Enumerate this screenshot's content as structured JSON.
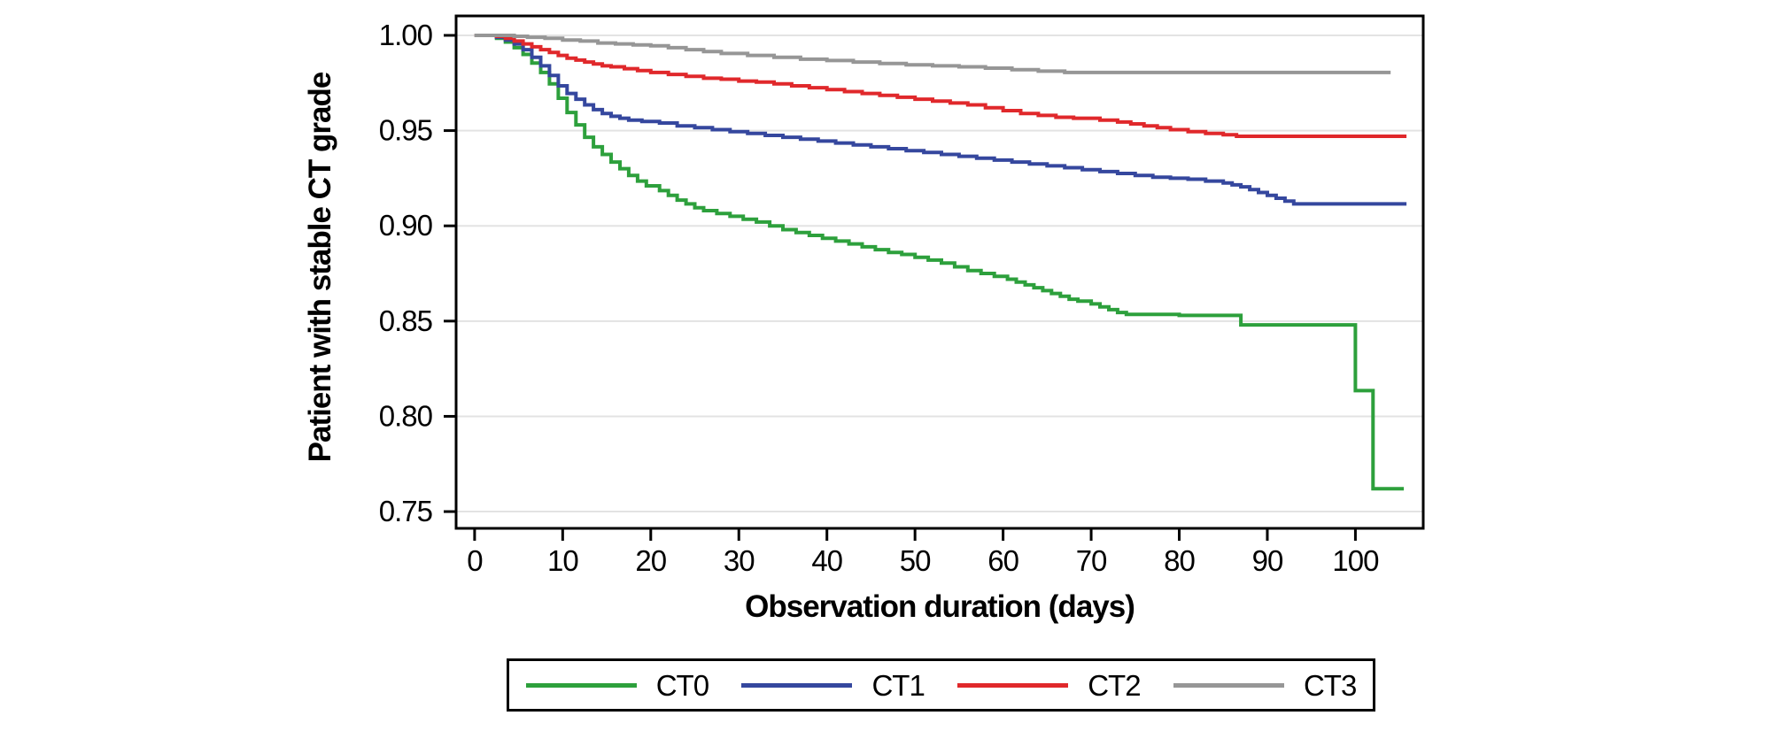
{
  "figure": {
    "background_color": "#ffffff",
    "axis_color": "#000000",
    "gridline_color": "#e3e3e3"
  },
  "chart_data": {
    "type": "line",
    "subtype": "kaplan-meier-step",
    "title": "",
    "xlabel": "Observation duration (days)",
    "ylabel": "Patient with stable CT grade",
    "xlim": [
      -2.1,
      107.7
    ],
    "ylim": [
      0.7412,
      1.0102
    ],
    "x_ticks": [
      0,
      10,
      20,
      30,
      40,
      50,
      60,
      70,
      80,
      90,
      100
    ],
    "y_ticks": [
      1.0,
      0.95,
      0.9,
      0.85,
      0.8,
      0.75
    ],
    "grid": "horizontal-only",
    "legend_position": "bottom-outside-boxed",
    "series": [
      {
        "name": "CT0",
        "color": "#2da03c",
        "points": [
          [
            0,
            1
          ],
          [
            2.5,
            0.9985
          ],
          [
            3.5,
            0.9965
          ],
          [
            4.5,
            0.9935
          ],
          [
            5.5,
            0.99
          ],
          [
            6.5,
            0.9855
          ],
          [
            7.5,
            0.9805
          ],
          [
            8.5,
            0.9745
          ],
          [
            9.5,
            0.967
          ],
          [
            10.5,
            0.9595
          ],
          [
            11.5,
            0.953
          ],
          [
            12.5,
            0.9465
          ],
          [
            13.5,
            0.9415
          ],
          [
            14.5,
            0.9375
          ],
          [
            15.5,
            0.9335
          ],
          [
            16.5,
            0.93
          ],
          [
            17.5,
            0.9265
          ],
          [
            18.5,
            0.9235
          ],
          [
            19.5,
            0.921
          ],
          [
            21,
            0.9185
          ],
          [
            22,
            0.916
          ],
          [
            23,
            0.9135
          ],
          [
            24,
            0.9115
          ],
          [
            25,
            0.9095
          ],
          [
            26,
            0.908
          ],
          [
            27.5,
            0.9065
          ],
          [
            29,
            0.905
          ],
          [
            30.5,
            0.9035
          ],
          [
            32,
            0.902
          ],
          [
            33.5,
            0.9
          ],
          [
            35,
            0.898
          ],
          [
            36.5,
            0.8965
          ],
          [
            38,
            0.895
          ],
          [
            39.5,
            0.8935
          ],
          [
            41,
            0.892
          ],
          [
            42.5,
            0.8905
          ],
          [
            44,
            0.889
          ],
          [
            45.5,
            0.8875
          ],
          [
            47,
            0.886
          ],
          [
            48.5,
            0.885
          ],
          [
            50,
            0.8835
          ],
          [
            51.5,
            0.882
          ],
          [
            53,
            0.8805
          ],
          [
            54.5,
            0.8785
          ],
          [
            56,
            0.8765
          ],
          [
            57.5,
            0.875
          ],
          [
            59,
            0.8735
          ],
          [
            60.5,
            0.872
          ],
          [
            61.5,
            0.8705
          ],
          [
            62.5,
            0.869
          ],
          [
            63.5,
            0.8675
          ],
          [
            64.5,
            0.866
          ],
          [
            65.5,
            0.8645
          ],
          [
            66.5,
            0.863
          ],
          [
            67.5,
            0.8615
          ],
          [
            68.5,
            0.8605
          ],
          [
            70,
            0.859
          ],
          [
            71,
            0.8575
          ],
          [
            72,
            0.856
          ],
          [
            73,
            0.8545
          ],
          [
            74,
            0.8535
          ],
          [
            80,
            0.853
          ],
          [
            87,
            0.848
          ],
          [
            100,
            0.8135
          ],
          [
            102,
            0.762
          ],
          [
            105.5,
            0.762
          ]
        ]
      },
      {
        "name": "CT1",
        "color": "#35479e",
        "points": [
          [
            0,
            1
          ],
          [
            2.5,
            0.999
          ],
          [
            3.5,
            0.9975
          ],
          [
            4.5,
            0.9955
          ],
          [
            5.5,
            0.9925
          ],
          [
            6.5,
            0.9885
          ],
          [
            7.5,
            0.984
          ],
          [
            8.5,
            0.979
          ],
          [
            9.5,
            0.9735
          ],
          [
            10.5,
            0.9695
          ],
          [
            11.5,
            0.9665
          ],
          [
            12.5,
            0.9635
          ],
          [
            13.5,
            0.961
          ],
          [
            14.5,
            0.959
          ],
          [
            15.5,
            0.9575
          ],
          [
            16.5,
            0.9565
          ],
          [
            17.5,
            0.9555
          ],
          [
            19,
            0.9548
          ],
          [
            21,
            0.954
          ],
          [
            23,
            0.9525
          ],
          [
            25,
            0.9515
          ],
          [
            27,
            0.9505
          ],
          [
            29,
            0.9495
          ],
          [
            31,
            0.9485
          ],
          [
            33,
            0.9475
          ],
          [
            35,
            0.9465
          ],
          [
            37,
            0.9455
          ],
          [
            39,
            0.9445
          ],
          [
            41,
            0.9435
          ],
          [
            43,
            0.9425
          ],
          [
            45,
            0.9415
          ],
          [
            47,
            0.9405
          ],
          [
            49,
            0.9395
          ],
          [
            51,
            0.9385
          ],
          [
            53,
            0.9375
          ],
          [
            55,
            0.9365
          ],
          [
            57,
            0.9355
          ],
          [
            59,
            0.9345
          ],
          [
            61,
            0.9335
          ],
          [
            63,
            0.9325
          ],
          [
            65,
            0.9315
          ],
          [
            67,
            0.9305
          ],
          [
            69,
            0.9295
          ],
          [
            71,
            0.9285
          ],
          [
            73,
            0.9275
          ],
          [
            75,
            0.9265
          ],
          [
            77,
            0.9255
          ],
          [
            79,
            0.925
          ],
          [
            81,
            0.9245
          ],
          [
            83,
            0.9235
          ],
          [
            85,
            0.9225
          ],
          [
            86,
            0.9215
          ],
          [
            87,
            0.9205
          ],
          [
            88,
            0.919
          ],
          [
            89,
            0.9175
          ],
          [
            90,
            0.916
          ],
          [
            91,
            0.9145
          ],
          [
            92,
            0.913
          ],
          [
            93,
            0.9115
          ],
          [
            105.8,
            0.9115
          ]
        ]
      },
      {
        "name": "CT2",
        "color": "#e0282b",
        "points": [
          [
            0,
            1
          ],
          [
            2.5,
            0.9995
          ],
          [
            3.5,
            0.9985
          ],
          [
            4.5,
            0.997
          ],
          [
            5.5,
            0.9955
          ],
          [
            6.5,
            0.994
          ],
          [
            7.5,
            0.9925
          ],
          [
            8.5,
            0.991
          ],
          [
            9.5,
            0.9895
          ],
          [
            10.5,
            0.988
          ],
          [
            11.5,
            0.987
          ],
          [
            12.5,
            0.986
          ],
          [
            13.5,
            0.985
          ],
          [
            14.5,
            0.984
          ],
          [
            15.5,
            0.9835
          ],
          [
            17,
            0.9825
          ],
          [
            18.5,
            0.9815
          ],
          [
            20,
            0.9805
          ],
          [
            22,
            0.9795
          ],
          [
            24,
            0.9785
          ],
          [
            26,
            0.9775
          ],
          [
            28,
            0.977
          ],
          [
            30,
            0.976
          ],
          [
            32,
            0.9755
          ],
          [
            34,
            0.9745
          ],
          [
            36,
            0.9735
          ],
          [
            38,
            0.9725
          ],
          [
            40,
            0.9715
          ],
          [
            42,
            0.9705
          ],
          [
            44,
            0.9695
          ],
          [
            46,
            0.9685
          ],
          [
            48,
            0.9675
          ],
          [
            50,
            0.9665
          ],
          [
            52,
            0.9655
          ],
          [
            54,
            0.9645
          ],
          [
            56,
            0.9635
          ],
          [
            58,
            0.962
          ],
          [
            60,
            0.9605
          ],
          [
            62,
            0.959
          ],
          [
            64,
            0.958
          ],
          [
            66,
            0.957
          ],
          [
            68,
            0.9565
          ],
          [
            71,
            0.9555
          ],
          [
            73,
            0.9545
          ],
          [
            74.5,
            0.9535
          ],
          [
            76,
            0.9525
          ],
          [
            77.5,
            0.9515
          ],
          [
            79,
            0.9505
          ],
          [
            81,
            0.9495
          ],
          [
            83,
            0.9485
          ],
          [
            85,
            0.9478
          ],
          [
            86.5,
            0.947
          ],
          [
            105.8,
            0.947
          ]
        ]
      },
      {
        "name": "CT3",
        "color": "#969696",
        "points": [
          [
            0,
            1
          ],
          [
            4.5,
            0.9995
          ],
          [
            6,
            0.999
          ],
          [
            8,
            0.9985
          ],
          [
            10,
            0.9975
          ],
          [
            12,
            0.997
          ],
          [
            14,
            0.996
          ],
          [
            16,
            0.9955
          ],
          [
            18,
            0.995
          ],
          [
            20,
            0.9945
          ],
          [
            22,
            0.9935
          ],
          [
            24,
            0.9925
          ],
          [
            26,
            0.9915
          ],
          [
            28,
            0.9905
          ],
          [
            31,
            0.9895
          ],
          [
            34,
            0.9885
          ],
          [
            37,
            0.9875
          ],
          [
            40,
            0.9868
          ],
          [
            43,
            0.986
          ],
          [
            46,
            0.9852
          ],
          [
            49,
            0.9845
          ],
          [
            52,
            0.984
          ],
          [
            55,
            0.9835
          ],
          [
            58,
            0.9828
          ],
          [
            61,
            0.982
          ],
          [
            64,
            0.9812
          ],
          [
            67,
            0.9805
          ],
          [
            104,
            0.9805
          ]
        ]
      }
    ]
  }
}
